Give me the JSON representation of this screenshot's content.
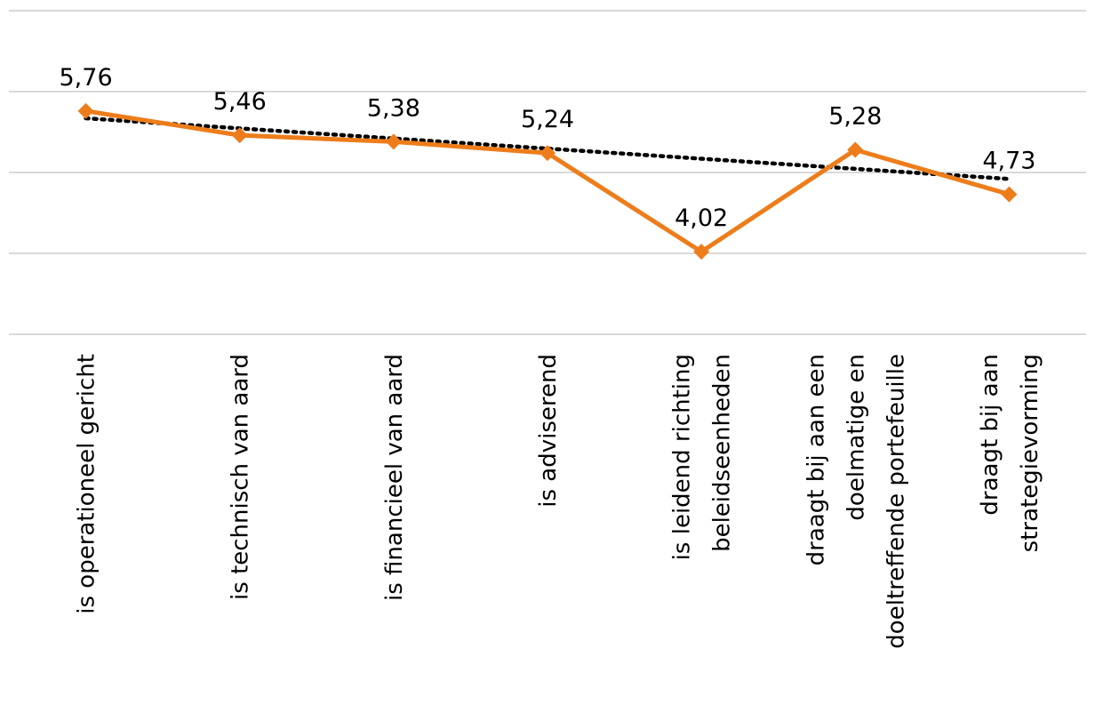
{
  "chart_data": {
    "type": "line",
    "title": "",
    "xlabel": "",
    "ylabel": "",
    "categories": [
      [
        "is operationeel gericht"
      ],
      [
        "is technisch van aard"
      ],
      [
        "is financieel van aard"
      ],
      [
        "is adviserend"
      ],
      [
        "is leidend richting",
        "beleidseenheden"
      ],
      [
        "draagt bij aan een",
        "doelmatige en",
        "doeltreffende portefeuille"
      ],
      [
        "draagt bij aan",
        "strategievorming"
      ]
    ],
    "series": [
      {
        "values": [
          5.76,
          5.46,
          5.38,
          5.24,
          4.02,
          5.28,
          4.73
        ],
        "data_labels": [
          "5,76",
          "5,46",
          "5,38",
          "5,24",
          "4,02",
          "5,28",
          "4,73"
        ],
        "color": "#ed7d1b",
        "marker": "diamond"
      }
    ],
    "trendline": {
      "type": "linear",
      "style": "dotted",
      "color": "#000000",
      "start": 5.67,
      "end": 4.92
    },
    "ylim": [
      3,
      7
    ],
    "grid": true,
    "legend": "none",
    "y_tick_labels_visible": false
  }
}
